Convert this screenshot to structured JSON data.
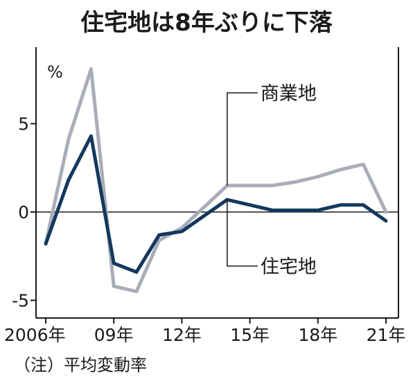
{
  "chart_data": {
    "type": "line",
    "title": "住宅地は8年ぶりに下落",
    "unit_label": "%",
    "note": "（注）平均変動率",
    "x": [
      2006,
      2007,
      2008,
      2009,
      2010,
      2011,
      2012,
      2013,
      2014,
      2015,
      2016,
      2017,
      2018,
      2019,
      2020,
      2021
    ],
    "xlim": [
      2006,
      2021
    ],
    "x_ticks": [
      2006,
      2009,
      2012,
      2015,
      2018,
      2021
    ],
    "x_tick_labels": [
      "2006年",
      "09年",
      "12年",
      "15年",
      "18年",
      "21年"
    ],
    "ylim": [
      -6,
      9
    ],
    "y_ticks": [
      -5,
      0,
      5
    ],
    "y_tick_labels": [
      "-5",
      "0",
      "5"
    ],
    "grid": false,
    "series": [
      {
        "name": "商業地",
        "color": "#a9adb8",
        "values": [
          -1.8,
          4.1,
          8.1,
          -4.2,
          -4.5,
          -1.6,
          -0.9,
          0.3,
          1.5,
          1.5,
          1.5,
          1.7,
          2.0,
          2.4,
          2.7,
          0.0
        ]
      },
      {
        "name": "住宅地",
        "color": "#14385e",
        "values": [
          -1.8,
          1.8,
          4.3,
          -2.9,
          -3.4,
          -1.3,
          -1.1,
          -0.2,
          0.7,
          0.4,
          0.1,
          0.1,
          0.1,
          0.4,
          0.4,
          -0.5
        ]
      }
    ]
  }
}
